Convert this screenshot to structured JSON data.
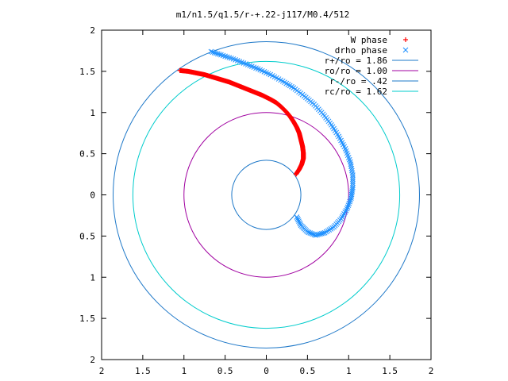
{
  "chart_data": {
    "type": "scatter",
    "title": "m1/n1.5/q1.5/r-+.22-j117/M0.4/512",
    "xlim": [
      -2,
      2
    ],
    "ylim": [
      -2,
      2
    ],
    "grid": false,
    "legend_placement": "top-right",
    "x_ticks": [
      -2,
      -1.5,
      -1,
      -0.5,
      0,
      0.5,
      1,
      1.5,
      2
    ],
    "x_tick_labels": [
      "2",
      "1.5",
      "1",
      "0.5",
      "0",
      "0.5",
      "1",
      "1.5",
      "2"
    ],
    "y_ticks": [
      2,
      1.5,
      1,
      0.5,
      0,
      -0.5,
      -1,
      -1.5,
      -2
    ],
    "y_tick_labels": [
      "2",
      "1.5",
      "1",
      "0.5",
      "0",
      "0.5",
      "1",
      "1.5",
      "2"
    ],
    "series": [
      {
        "name": "W phase",
        "marker": "+",
        "color": "#ff0000",
        "points": [
          [
            -1.05,
            1.51
          ],
          [
            -0.95,
            1.5
          ],
          [
            -0.85,
            1.48
          ],
          [
            -0.75,
            1.46
          ],
          [
            -0.65,
            1.43
          ],
          [
            -0.55,
            1.4
          ],
          [
            -0.45,
            1.37
          ],
          [
            -0.35,
            1.33
          ],
          [
            -0.25,
            1.29
          ],
          [
            -0.15,
            1.25
          ],
          [
            -0.05,
            1.21
          ],
          [
            0.05,
            1.16
          ],
          [
            0.12,
            1.12
          ],
          [
            0.18,
            1.07
          ],
          [
            0.24,
            1.01
          ],
          [
            0.29,
            0.95
          ],
          [
            0.33,
            0.89
          ],
          [
            0.37,
            0.82
          ],
          [
            0.4,
            0.75
          ],
          [
            0.42,
            0.67
          ],
          [
            0.44,
            0.59
          ],
          [
            0.45,
            0.51
          ],
          [
            0.45,
            0.44
          ],
          [
            0.43,
            0.37
          ],
          [
            0.4,
            0.31
          ],
          [
            0.36,
            0.25
          ]
        ]
      },
      {
        "name": "drho phase",
        "marker": "x",
        "color": "#1e90ff",
        "points": [
          [
            -0.67,
            1.74
          ],
          [
            -0.55,
            1.7
          ],
          [
            -0.4,
            1.65
          ],
          [
            -0.25,
            1.59
          ],
          [
            -0.1,
            1.53
          ],
          [
            0.05,
            1.46
          ],
          [
            0.2,
            1.38
          ],
          [
            0.33,
            1.3
          ],
          [
            0.46,
            1.2
          ],
          [
            0.58,
            1.1
          ],
          [
            0.69,
            0.98
          ],
          [
            0.79,
            0.85
          ],
          [
            0.88,
            0.71
          ],
          [
            0.96,
            0.56
          ],
          [
            1.02,
            0.4
          ],
          [
            1.05,
            0.24
          ],
          [
            1.05,
            0.09
          ],
          [
            1.03,
            -0.04
          ],
          [
            0.98,
            -0.17
          ],
          [
            0.91,
            -0.29
          ],
          [
            0.82,
            -0.39
          ],
          [
            0.71,
            -0.46
          ],
          [
            0.6,
            -0.49
          ],
          [
            0.5,
            -0.45
          ],
          [
            0.42,
            -0.37
          ],
          [
            0.37,
            -0.27
          ]
        ]
      },
      {
        "name": "r+/ro = 1.86",
        "type": "circle",
        "radius": 1.86,
        "color": "#1e78c8"
      },
      {
        "name": "ro/ro = 1.00",
        "type": "circle",
        "radius": 1.0,
        "color": "#a000a0"
      },
      {
        "name": "r-/ro = .42",
        "type": "circle",
        "radius": 0.42,
        "color": "#1e78c8"
      },
      {
        "name": "rc/ro = 1.62",
        "type": "circle",
        "radius": 1.62,
        "color": "#00cccc"
      }
    ]
  }
}
